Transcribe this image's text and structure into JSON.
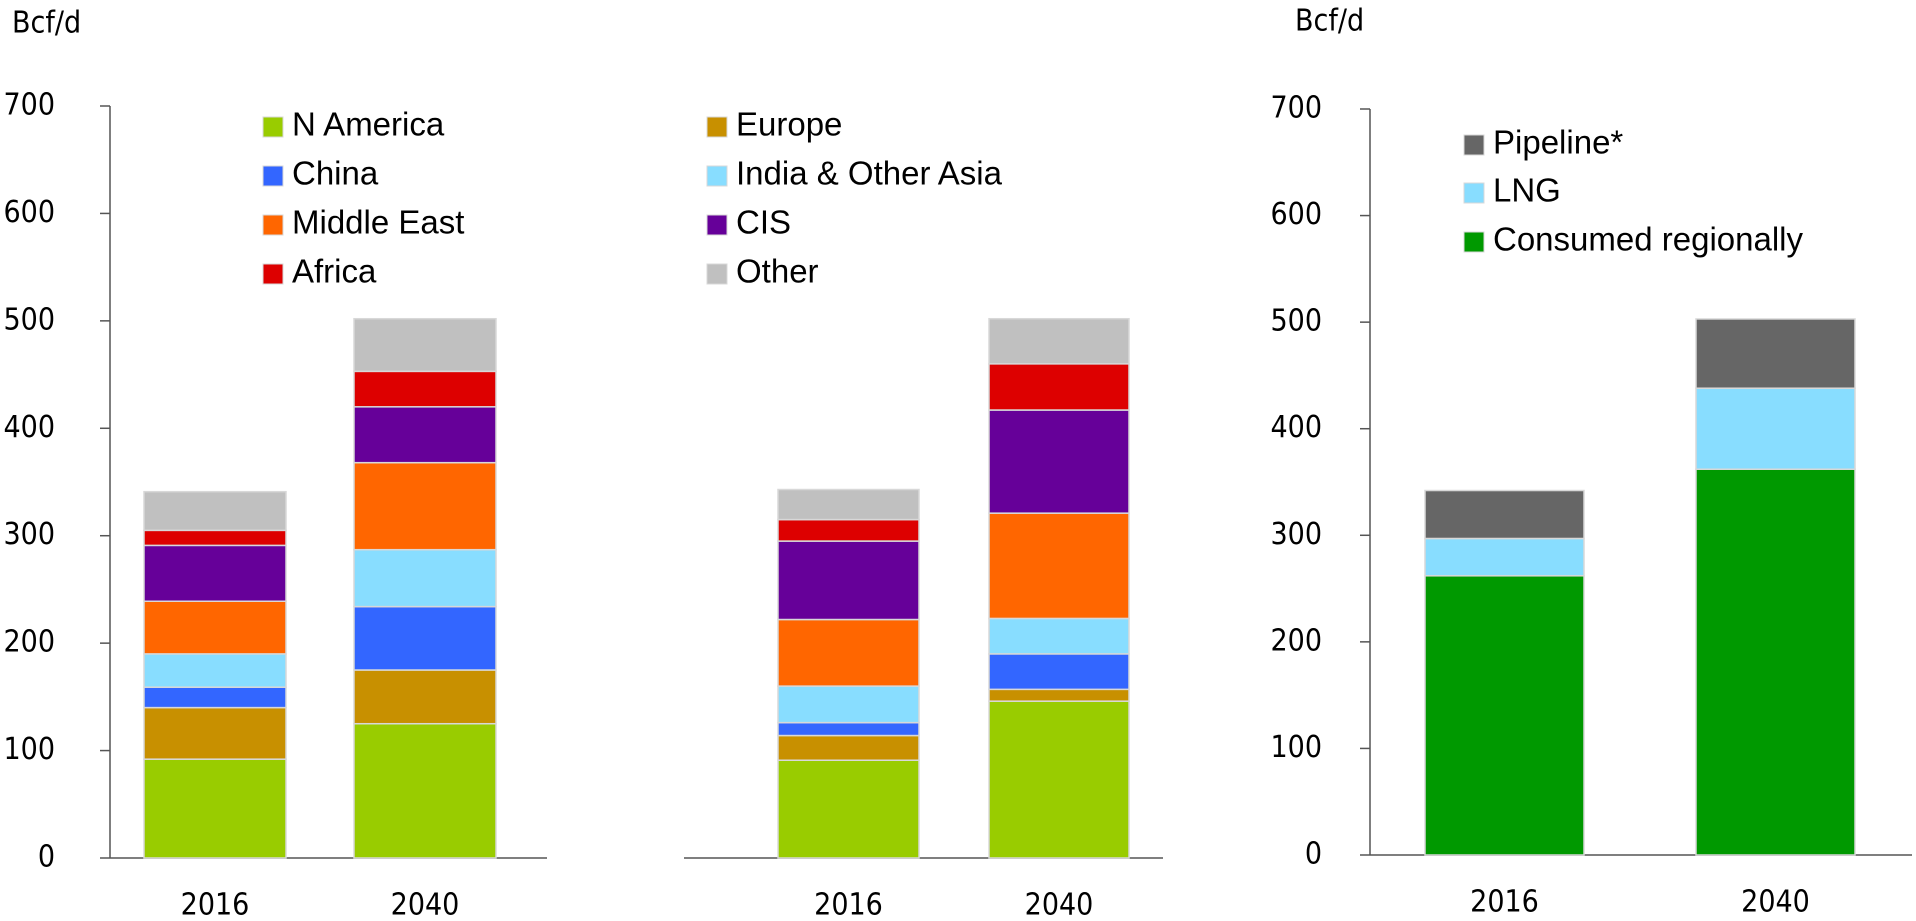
{
  "chart_data": [
    {
      "type": "stacked-bar",
      "ylabel": "Bcf/d",
      "categories": [
        "2016",
        "2040"
      ],
      "ylim": [
        0,
        700
      ],
      "yticks": [
        0,
        100,
        200,
        300,
        400,
        500,
        600,
        700
      ],
      "legend": true,
      "series": [
        {
          "name": "N America",
          "color": "#99cc00",
          "values": [
            92,
            125
          ]
        },
        {
          "name": "Europe",
          "color": "#c89000",
          "values": [
            48,
            50
          ]
        },
        {
          "name": "China",
          "color": "#3366ff",
          "values": [
            19,
            59
          ]
        },
        {
          "name": "India & Other Asia",
          "color": "#88ddff",
          "values": [
            31,
            53
          ]
        },
        {
          "name": "Middle East",
          "color": "#ff6600",
          "values": [
            49,
            81
          ]
        },
        {
          "name": "CIS",
          "color": "#660099",
          "values": [
            52,
            52
          ]
        },
        {
          "name": "Africa",
          "color": "#dd0000",
          "values": [
            14,
            33
          ]
        },
        {
          "name": "Other",
          "color": "#c0c0c0",
          "values": [
            36,
            49
          ]
        }
      ]
    },
    {
      "type": "stacked-bar",
      "categories": [
        "2016",
        "2040"
      ],
      "ylim": [
        0,
        700
      ],
      "legend": false,
      "series": [
        {
          "name": "N America",
          "color": "#99cc00",
          "values": [
            91,
            146
          ]
        },
        {
          "name": "Europe",
          "color": "#c89000",
          "values": [
            23,
            11
          ]
        },
        {
          "name": "China",
          "color": "#3366ff",
          "values": [
            12,
            33
          ]
        },
        {
          "name": "India & Other Asia",
          "color": "#88ddff",
          "values": [
            34,
            33
          ]
        },
        {
          "name": "Middle East",
          "color": "#ff6600",
          "values": [
            62,
            98
          ]
        },
        {
          "name": "CIS",
          "color": "#660099",
          "values": [
            73,
            96
          ]
        },
        {
          "name": "Africa",
          "color": "#dd0000",
          "values": [
            20,
            43
          ]
        },
        {
          "name": "Other",
          "color": "#c0c0c0",
          "values": [
            28,
            42
          ]
        }
      ]
    },
    {
      "type": "stacked-bar",
      "ylabel": "Bcf/d",
      "categories": [
        "2016",
        "2040"
      ],
      "ylim": [
        0,
        700
      ],
      "yticks": [
        0,
        100,
        200,
        300,
        400,
        500,
        600,
        700
      ],
      "legend": true,
      "series": [
        {
          "name": "Consumed regionally",
          "color": "#009900",
          "values": [
            262,
            362
          ]
        },
        {
          "name": "LNG",
          "color": "#88ddff",
          "values": [
            35,
            76
          ]
        },
        {
          "name": "Pipeline*",
          "color": "#666666",
          "values": [
            45,
            65
          ]
        }
      ]
    }
  ]
}
